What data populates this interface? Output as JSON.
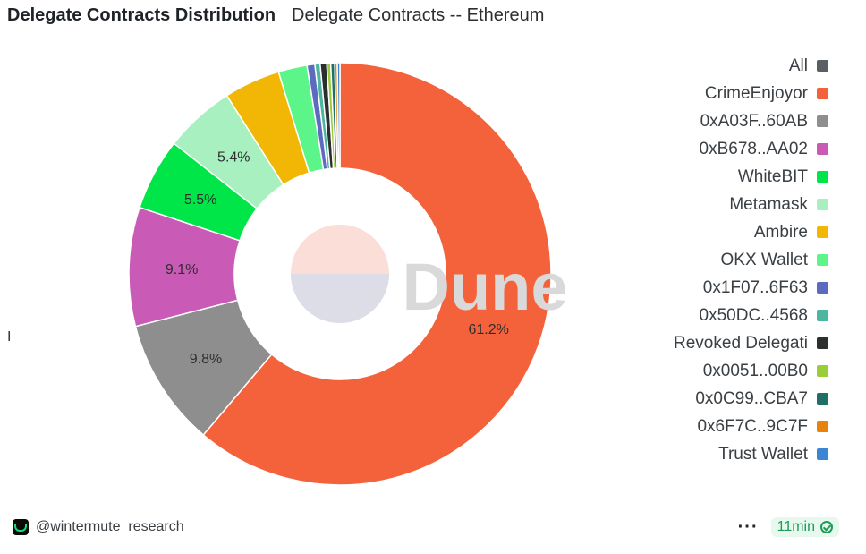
{
  "header": {
    "title": "Delegate Contracts Distribution",
    "subtitle": "Delegate Contracts -- Ethereum"
  },
  "watermark": "Dune",
  "chart_data": {
    "type": "pie",
    "donut": true,
    "legend_position": "right",
    "legend": [
      {
        "name": "All",
        "color": "#5a5f66"
      },
      {
        "name": "CrimeEnjoyor",
        "color": "#f4623c"
      },
      {
        "name": "0xA03F..60AB",
        "color": "#8e8e8e"
      },
      {
        "name": "0xB678..AA02",
        "color": "#c95bb6"
      },
      {
        "name": "WhiteBIT",
        "color": "#00e648"
      },
      {
        "name": "Metamask",
        "color": "#a8f0c0"
      },
      {
        "name": "Ambire",
        "color": "#f2b705"
      },
      {
        "name": "OKX Wallet",
        "color": "#5cf58a"
      },
      {
        "name": "0x1F07..6F63",
        "color": "#5c6bc0"
      },
      {
        "name": "0x50DC..4568",
        "color": "#4db6a0"
      },
      {
        "name": "Revoked Delegati",
        "color": "#2b2f2d"
      },
      {
        "name": "0x0051..00B0",
        "color": "#9acd3a"
      },
      {
        "name": "0x0C99..CBA7",
        "color": "#1f6f66"
      },
      {
        "name": "0x6F7C..9C7F",
        "color": "#e8820c"
      },
      {
        "name": "Trust Wallet",
        "color": "#3a86d4"
      }
    ],
    "slices": [
      {
        "name": "CrimeEnjoyor",
        "value": 61.2,
        "label": "61.2%",
        "color": "#f4623c"
      },
      {
        "name": "0xA03F..60AB",
        "value": 9.8,
        "label": "9.8%",
        "color": "#8e8e8e"
      },
      {
        "name": "0xB678..AA02",
        "value": 9.1,
        "label": "9.1%",
        "color": "#c95bb6"
      },
      {
        "name": "WhiteBIT",
        "value": 5.5,
        "label": "5.5%",
        "color": "#00e648"
      },
      {
        "name": "Metamask",
        "value": 5.4,
        "label": "5.4%",
        "color": "#a8f0c0"
      },
      {
        "name": "Ambire",
        "value": 4.3,
        "label": "",
        "color": "#f2b705"
      },
      {
        "name": "OKX Wallet",
        "value": 2.2,
        "label": "",
        "color": "#5cf58a"
      },
      {
        "name": "0x1F07..6F63",
        "value": 0.6,
        "label": "",
        "color": "#5c6bc0"
      },
      {
        "name": "0x50DC..4568",
        "value": 0.4,
        "label": "",
        "color": "#4db6a0"
      },
      {
        "name": "Revoked Delegati",
        "value": 0.5,
        "label": "",
        "color": "#2b2f2d"
      },
      {
        "name": "0x0051..00B0",
        "value": 0.3,
        "label": "",
        "color": "#9acd3a"
      },
      {
        "name": "0x0C99..CBA7",
        "value": 0.3,
        "label": "",
        "color": "#1f6f66"
      },
      {
        "name": "0x6F7C..9C7F",
        "value": 0.2,
        "label": "",
        "color": "#e8820c"
      },
      {
        "name": "Trust Wallet",
        "value": 0.2,
        "label": "",
        "color": "#3a86d4"
      }
    ]
  },
  "footer": {
    "author": "@wintermute_research",
    "more_icon": "ellipsis-icon",
    "refresh_badge": "11min",
    "status_icon": "check-circle-icon",
    "badge_color": "#1a9c55"
  }
}
